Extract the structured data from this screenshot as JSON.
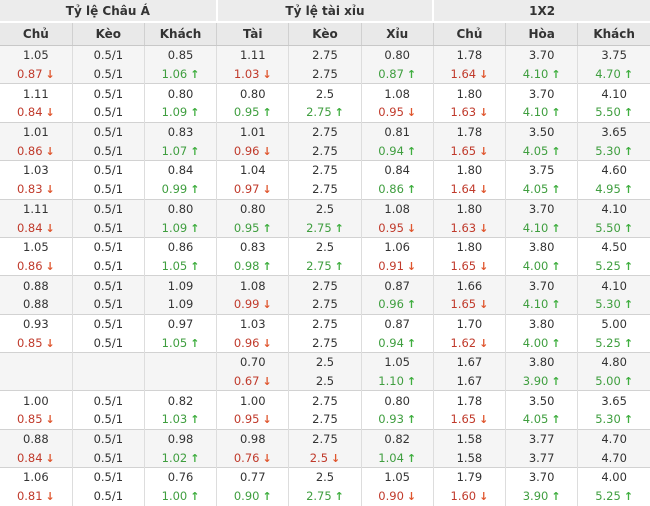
{
  "table": {
    "groups": [
      {
        "label": "Tỷ lệ Châu Á"
      },
      {
        "label": "Tỷ lệ tài xỉu"
      },
      {
        "label": "1X2"
      }
    ],
    "columns": [
      "Chủ",
      "Kèo",
      "Khách",
      "Tài",
      "Kèo",
      "Xỉu",
      "Chủ",
      "Hòa",
      "Khách"
    ],
    "icons": {
      "up_arrow": "↑",
      "down_arrow": "↓"
    },
    "colors": {
      "up_value": "#3f9e3f",
      "down_value": "#c03a2b",
      "up_arrow": "#3fae3f",
      "down_arrow": "#e0562e",
      "header_bg": "#ececec",
      "row_shade": "#f5f5f5"
    },
    "rows": [
      [
        [
          "1.05",
          ""
        ],
        [
          "0.5/1",
          ""
        ],
        [
          "0.85",
          ""
        ],
        [
          "1.11",
          ""
        ],
        [
          "2.75",
          ""
        ],
        [
          "0.80",
          ""
        ],
        [
          "1.78",
          ""
        ],
        [
          "3.70",
          ""
        ],
        [
          "3.75",
          ""
        ]
      ],
      [
        [
          "0.87",
          "d"
        ],
        [
          "0.5/1",
          ""
        ],
        [
          "1.06",
          "u"
        ],
        [
          "1.03",
          "d"
        ],
        [
          "2.75",
          ""
        ],
        [
          "0.87",
          "u"
        ],
        [
          "1.64",
          "d"
        ],
        [
          "4.10",
          "u"
        ],
        [
          "4.70",
          "u"
        ]
      ],
      [
        [
          "1.11",
          ""
        ],
        [
          "0.5/1",
          ""
        ],
        [
          "0.80",
          ""
        ],
        [
          "0.80",
          ""
        ],
        [
          "2.5",
          ""
        ],
        [
          "1.08",
          ""
        ],
        [
          "1.80",
          ""
        ],
        [
          "3.70",
          ""
        ],
        [
          "4.10",
          ""
        ]
      ],
      [
        [
          "0.84",
          "d"
        ],
        [
          "0.5/1",
          ""
        ],
        [
          "1.09",
          "u"
        ],
        [
          "0.95",
          "u"
        ],
        [
          "2.75",
          "u"
        ],
        [
          "0.95",
          "d"
        ],
        [
          "1.63",
          "d"
        ],
        [
          "4.10",
          "u"
        ],
        [
          "5.50",
          "u"
        ]
      ],
      [
        [
          "1.01",
          ""
        ],
        [
          "0.5/1",
          ""
        ],
        [
          "0.83",
          ""
        ],
        [
          "1.01",
          ""
        ],
        [
          "2.75",
          ""
        ],
        [
          "0.81",
          ""
        ],
        [
          "1.78",
          ""
        ],
        [
          "3.50",
          ""
        ],
        [
          "3.65",
          ""
        ]
      ],
      [
        [
          "0.86",
          "d"
        ],
        [
          "0.5/1",
          ""
        ],
        [
          "1.07",
          "u"
        ],
        [
          "0.96",
          "d"
        ],
        [
          "2.75",
          ""
        ],
        [
          "0.94",
          "u"
        ],
        [
          "1.65",
          "d"
        ],
        [
          "4.05",
          "u"
        ],
        [
          "5.30",
          "u"
        ]
      ],
      [
        [
          "1.03",
          ""
        ],
        [
          "0.5/1",
          ""
        ],
        [
          "0.84",
          ""
        ],
        [
          "1.04",
          ""
        ],
        [
          "2.75",
          ""
        ],
        [
          "0.84",
          ""
        ],
        [
          "1.80",
          ""
        ],
        [
          "3.75",
          ""
        ],
        [
          "4.60",
          ""
        ]
      ],
      [
        [
          "0.83",
          "d"
        ],
        [
          "0.5/1",
          ""
        ],
        [
          "0.99",
          "u"
        ],
        [
          "0.97",
          "d"
        ],
        [
          "2.75",
          ""
        ],
        [
          "0.86",
          "u"
        ],
        [
          "1.64",
          "d"
        ],
        [
          "4.05",
          "u"
        ],
        [
          "4.95",
          "u"
        ]
      ],
      [
        [
          "1.11",
          ""
        ],
        [
          "0.5/1",
          ""
        ],
        [
          "0.80",
          ""
        ],
        [
          "0.80",
          ""
        ],
        [
          "2.5",
          ""
        ],
        [
          "1.08",
          ""
        ],
        [
          "1.80",
          ""
        ],
        [
          "3.70",
          ""
        ],
        [
          "4.10",
          ""
        ]
      ],
      [
        [
          "0.84",
          "d"
        ],
        [
          "0.5/1",
          ""
        ],
        [
          "1.09",
          "u"
        ],
        [
          "0.95",
          "u"
        ],
        [
          "2.75",
          "u"
        ],
        [
          "0.95",
          "d"
        ],
        [
          "1.63",
          "d"
        ],
        [
          "4.10",
          "u"
        ],
        [
          "5.50",
          "u"
        ]
      ],
      [
        [
          "1.05",
          ""
        ],
        [
          "0.5/1",
          ""
        ],
        [
          "0.86",
          ""
        ],
        [
          "0.83",
          ""
        ],
        [
          "2.5",
          ""
        ],
        [
          "1.06",
          ""
        ],
        [
          "1.80",
          ""
        ],
        [
          "3.80",
          ""
        ],
        [
          "4.50",
          ""
        ]
      ],
      [
        [
          "0.86",
          "d"
        ],
        [
          "0.5/1",
          ""
        ],
        [
          "1.05",
          "u"
        ],
        [
          "0.98",
          "u"
        ],
        [
          "2.75",
          "u"
        ],
        [
          "0.91",
          "d"
        ],
        [
          "1.65",
          "d"
        ],
        [
          "4.00",
          "u"
        ],
        [
          "5.25",
          "u"
        ]
      ],
      [
        [
          "0.88",
          ""
        ],
        [
          "0.5/1",
          ""
        ],
        [
          "1.09",
          ""
        ],
        [
          "1.08",
          ""
        ],
        [
          "2.75",
          ""
        ],
        [
          "0.87",
          ""
        ],
        [
          "1.66",
          ""
        ],
        [
          "3.70",
          ""
        ],
        [
          "4.10",
          ""
        ]
      ],
      [
        [
          "0.88",
          ""
        ],
        [
          "0.5/1",
          ""
        ],
        [
          "1.09",
          ""
        ],
        [
          "0.99",
          "d"
        ],
        [
          "2.75",
          ""
        ],
        [
          "0.96",
          "u"
        ],
        [
          "1.65",
          "d"
        ],
        [
          "4.10",
          "u"
        ],
        [
          "5.30",
          "u"
        ]
      ],
      [
        [
          "0.93",
          ""
        ],
        [
          "0.5/1",
          ""
        ],
        [
          "0.97",
          ""
        ],
        [
          "1.03",
          ""
        ],
        [
          "2.75",
          ""
        ],
        [
          "0.87",
          ""
        ],
        [
          "1.70",
          ""
        ],
        [
          "3.80",
          ""
        ],
        [
          "5.00",
          ""
        ]
      ],
      [
        [
          "0.85",
          "d"
        ],
        [
          "0.5/1",
          ""
        ],
        [
          "1.05",
          "u"
        ],
        [
          "0.96",
          "d"
        ],
        [
          "2.75",
          ""
        ],
        [
          "0.94",
          "u"
        ],
        [
          "1.62",
          "d"
        ],
        [
          "4.00",
          "u"
        ],
        [
          "5.25",
          "u"
        ]
      ],
      [
        [
          "",
          ""
        ],
        [
          "",
          ""
        ],
        [
          "",
          ""
        ],
        [
          "0.70",
          ""
        ],
        [
          "2.5",
          ""
        ],
        [
          "1.05",
          ""
        ],
        [
          "1.67",
          ""
        ],
        [
          "3.80",
          ""
        ],
        [
          "4.80",
          ""
        ]
      ],
      [
        [
          "",
          ""
        ],
        [
          "",
          ""
        ],
        [
          "",
          ""
        ],
        [
          "0.67",
          "d"
        ],
        [
          "2.5",
          ""
        ],
        [
          "1.10",
          "u"
        ],
        [
          "1.67",
          ""
        ],
        [
          "3.90",
          "u"
        ],
        [
          "5.00",
          "u"
        ]
      ],
      [
        [
          "1.00",
          ""
        ],
        [
          "0.5/1",
          ""
        ],
        [
          "0.82",
          ""
        ],
        [
          "1.00",
          ""
        ],
        [
          "2.75",
          ""
        ],
        [
          "0.80",
          ""
        ],
        [
          "1.78",
          ""
        ],
        [
          "3.50",
          ""
        ],
        [
          "3.65",
          ""
        ]
      ],
      [
        [
          "0.85",
          "d"
        ],
        [
          "0.5/1",
          ""
        ],
        [
          "1.03",
          "u"
        ],
        [
          "0.95",
          "d"
        ],
        [
          "2.75",
          ""
        ],
        [
          "0.93",
          "u"
        ],
        [
          "1.65",
          "d"
        ],
        [
          "4.05",
          "u"
        ],
        [
          "5.30",
          "u"
        ]
      ],
      [
        [
          "0.88",
          ""
        ],
        [
          "0.5/1",
          ""
        ],
        [
          "0.98",
          ""
        ],
        [
          "0.98",
          ""
        ],
        [
          "2.75",
          ""
        ],
        [
          "0.82",
          ""
        ],
        [
          "1.58",
          ""
        ],
        [
          "3.77",
          ""
        ],
        [
          "4.70",
          ""
        ]
      ],
      [
        [
          "0.84",
          "d"
        ],
        [
          "0.5/1",
          ""
        ],
        [
          "1.02",
          "u"
        ],
        [
          "0.76",
          "d"
        ],
        [
          "2.5",
          "d"
        ],
        [
          "1.04",
          "u"
        ],
        [
          "1.58",
          ""
        ],
        [
          "3.77",
          ""
        ],
        [
          "4.70",
          ""
        ]
      ],
      [
        [
          "1.06",
          ""
        ],
        [
          "0.5/1",
          ""
        ],
        [
          "0.76",
          ""
        ],
        [
          "0.77",
          ""
        ],
        [
          "2.5",
          ""
        ],
        [
          "1.05",
          ""
        ],
        [
          "1.79",
          ""
        ],
        [
          "3.70",
          ""
        ],
        [
          "4.00",
          ""
        ]
      ],
      [
        [
          "0.81",
          "d"
        ],
        [
          "0.5/1",
          ""
        ],
        [
          "1.00",
          "u"
        ],
        [
          "0.90",
          "u"
        ],
        [
          "2.75",
          "u"
        ],
        [
          "0.90",
          "d"
        ],
        [
          "1.60",
          "d"
        ],
        [
          "3.90",
          "u"
        ],
        [
          "5.25",
          "u"
        ]
      ]
    ]
  }
}
